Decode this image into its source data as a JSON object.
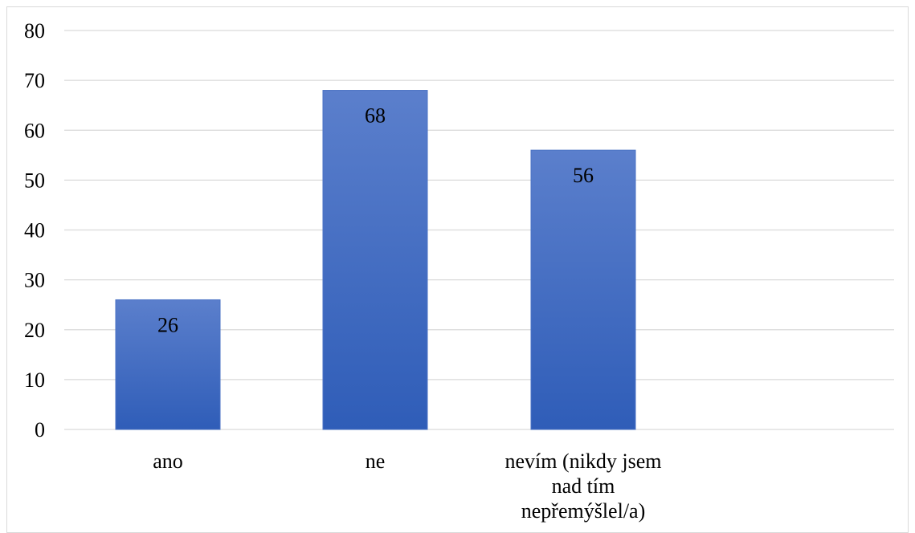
{
  "colors": {
    "bar_top": "#5b7fcc",
    "bar_bottom": "#2f5db8",
    "bar_edge": "#4a72c4",
    "gridline": "#d9d9d9",
    "frame": "#d9d9d9",
    "text": "#000000"
  },
  "chart_data": {
    "type": "bar",
    "categories": [
      "ano",
      "ne",
      "nevím (nikdy jsem nad tím nepřemýšlel/a)"
    ],
    "category_lines": [
      [
        "ano"
      ],
      [
        "ne"
      ],
      [
        "nevím (nikdy jsem",
        "nad tím",
        "nepřemýšlel/a)"
      ]
    ],
    "values": [
      26,
      68,
      56
    ],
    "data_labels": [
      "26",
      "68",
      "56"
    ],
    "title": "",
    "xlabel": "",
    "ylabel": "",
    "ylim": [
      0,
      80
    ],
    "yticks": [
      "0",
      "10",
      "20",
      "30",
      "40",
      "50",
      "60",
      "70",
      "80"
    ],
    "grid": true,
    "legend": "none"
  }
}
